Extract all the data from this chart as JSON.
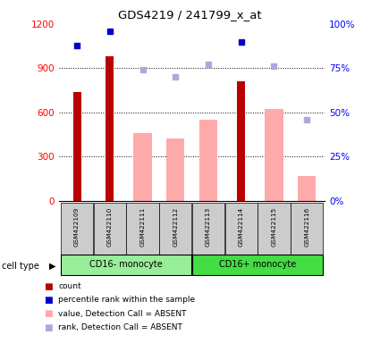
{
  "title": "GDS4219 / 241799_x_at",
  "samples": [
    "GSM422109",
    "GSM422110",
    "GSM422111",
    "GSM422112",
    "GSM422113",
    "GSM422114",
    "GSM422115",
    "GSM422116"
  ],
  "cell_type_labels": [
    "CD16- monocyte",
    "CD16+ monocyte"
  ],
  "count_values": [
    740,
    980,
    null,
    null,
    null,
    810,
    null,
    null
  ],
  "absent_value_bars": [
    null,
    null,
    460,
    420,
    550,
    null,
    620,
    170
  ],
  "percentile_rank_present": [
    88,
    96,
    null,
    null,
    null,
    90,
    null,
    null
  ],
  "percentile_rank_absent": [
    null,
    null,
    74,
    70,
    77,
    null,
    76,
    46
  ],
  "ylim_left": [
    0,
    1200
  ],
  "ylim_right": [
    0,
    100
  ],
  "yticks_left": [
    0,
    300,
    600,
    900,
    1200
  ],
  "ytick_labels_right": [
    "0%",
    "25%",
    "50%",
    "75%",
    "100%"
  ],
  "yticks_right": [
    0,
    25,
    50,
    75,
    100
  ],
  "color_count": "#bb0000",
  "color_percentile_present": "#0000cc",
  "color_absent_bar": "#ffaaaa",
  "color_rank_absent": "#aaaadd",
  "color_cell_type_bg_left": "#99ee99",
  "color_cell_type_bg_right": "#44dd44",
  "color_sample_bg": "#cccccc",
  "legend_labels": [
    "count",
    "percentile rank within the sample",
    "value, Detection Call = ABSENT",
    "rank, Detection Call = ABSENT"
  ],
  "legend_colors": [
    "#bb0000",
    "#0000cc",
    "#ffaaaa",
    "#aaaadd"
  ]
}
